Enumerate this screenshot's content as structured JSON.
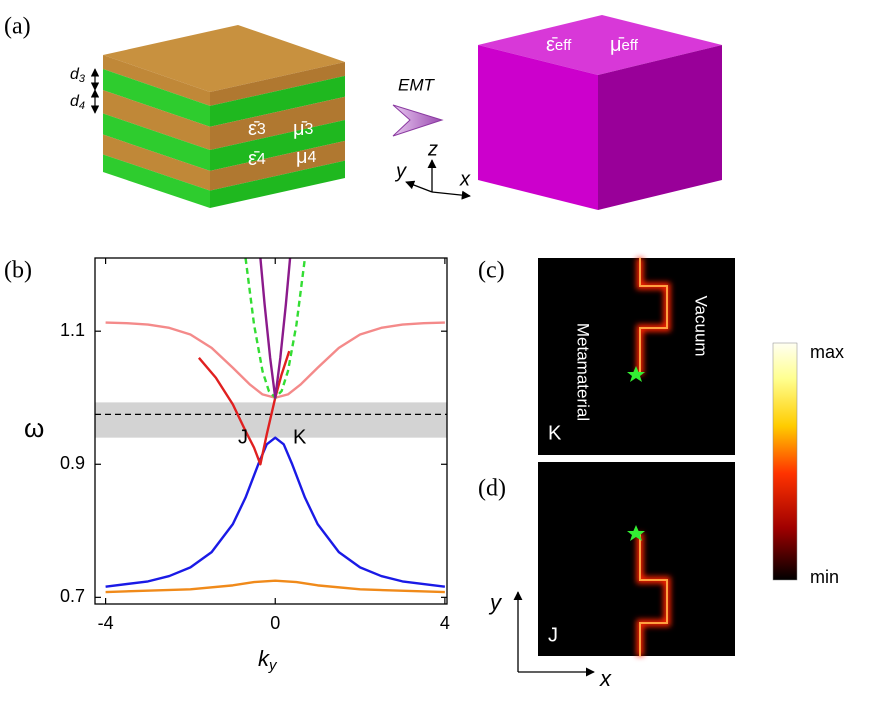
{
  "panel_a": {
    "label": "(a)",
    "d3": {
      "base": "d",
      "sub": "3"
    },
    "d4": {
      "base": "d",
      "sub": "4"
    },
    "layers": [
      {
        "eps": {
          "sym": "ε̄",
          "sub": "3"
        },
        "mu": {
          "sym": "μ̄",
          "sub": "3"
        }
      },
      {
        "eps": {
          "sym": "ε̄",
          "sub": "4"
        },
        "mu": {
          "sym": "μ",
          "sub": "4"
        }
      }
    ],
    "arrow_label": "EMT",
    "axes": {
      "x": "x",
      "y": "y",
      "z": "z"
    },
    "effective": {
      "eps": {
        "sym": "ε̄",
        "sub": "eff"
      },
      "mu": {
        "sym": "μ̄",
        "sub": "eff"
      }
    }
  },
  "chart_data": {
    "type": "line",
    "panel_label": "(b)",
    "xlabel": {
      "base": "k",
      "sub": "y"
    },
    "ylabel": "ω",
    "xlim": [
      -4.25,
      4.05
    ],
    "ylim": [
      0.69,
      1.21
    ],
    "xticks": [
      -4,
      0,
      4
    ],
    "yticks": [
      0.7,
      0.9,
      1.1
    ],
    "band": [
      0.94,
      0.993
    ],
    "band_color": "#d3d3d3",
    "hline": 0.975,
    "annotations": [
      "J",
      "K"
    ],
    "series": [
      {
        "color": "#f48a8a",
        "dash": false,
        "x": [
          -4,
          -3.5,
          -3,
          -2.5,
          -2,
          -1.5,
          -1,
          -0.6,
          -0.3,
          0,
          0.3,
          0.6,
          1,
          1.5,
          2,
          2.5,
          3,
          3.5,
          4
        ],
        "values": [
          1.113,
          1.112,
          1.11,
          1.105,
          1.095,
          1.075,
          1.045,
          1.02,
          1.005,
          1.0,
          1.005,
          1.02,
          1.045,
          1.075,
          1.095,
          1.105,
          1.11,
          1.112,
          1.113
        ]
      },
      {
        "color": "#e02020",
        "dash": false,
        "x": [
          -1.8,
          -1.4,
          -1.0,
          -0.7,
          -0.5,
          -0.35,
          -0.2,
          0,
          0.15,
          0.33
        ],
        "values": [
          1.06,
          1.03,
          0.99,
          0.95,
          0.925,
          0.9,
          0.945,
          1.0,
          1.035,
          1.07
        ]
      },
      {
        "color": "#1a1ae6",
        "dash": false,
        "x": [
          -4,
          -3,
          -2.5,
          -2,
          -1.5,
          -1,
          -0.7,
          -0.4,
          -0.2,
          0,
          0.2,
          0.4,
          0.7,
          1,
          1.5,
          2,
          2.5,
          3,
          4
        ],
        "values": [
          0.716,
          0.724,
          0.732,
          0.745,
          0.768,
          0.81,
          0.85,
          0.9,
          0.93,
          0.94,
          0.93,
          0.9,
          0.85,
          0.81,
          0.768,
          0.745,
          0.732,
          0.724,
          0.716
        ]
      },
      {
        "color": "#f08a1a",
        "dash": false,
        "x": [
          -4,
          -2,
          -1,
          -0.5,
          0,
          0.5,
          1,
          2,
          4
        ],
        "values": [
          0.708,
          0.712,
          0.718,
          0.723,
          0.725,
          0.723,
          0.718,
          0.712,
          0.708
        ]
      },
      {
        "color": "#8b1a8b",
        "dash": false,
        "x": [
          -0.35,
          -0.25,
          -0.12,
          0,
          0.12,
          0.25,
          0.35
        ],
        "values": [
          1.21,
          1.14,
          1.06,
          1.0,
          1.06,
          1.14,
          1.21
        ]
      },
      {
        "color": "#33dd33",
        "dash": true,
        "x": [
          -0.7,
          -0.5,
          -0.3,
          -0.15,
          0,
          0.15,
          0.3,
          0.5,
          0.7
        ],
        "values": [
          1.21,
          1.11,
          1.04,
          1.01,
          1.0,
          1.01,
          1.04,
          1.11,
          1.21
        ]
      }
    ]
  },
  "panel_c": {
    "label": "(c)",
    "left_text": "Metamaterial",
    "right_text": "Vacuum",
    "point": "K"
  },
  "panel_d": {
    "label": "(d)",
    "point": "J"
  },
  "colorbar": {
    "max": "max",
    "min": "min"
  },
  "axes_cd": {
    "x": "x",
    "y": "y"
  }
}
